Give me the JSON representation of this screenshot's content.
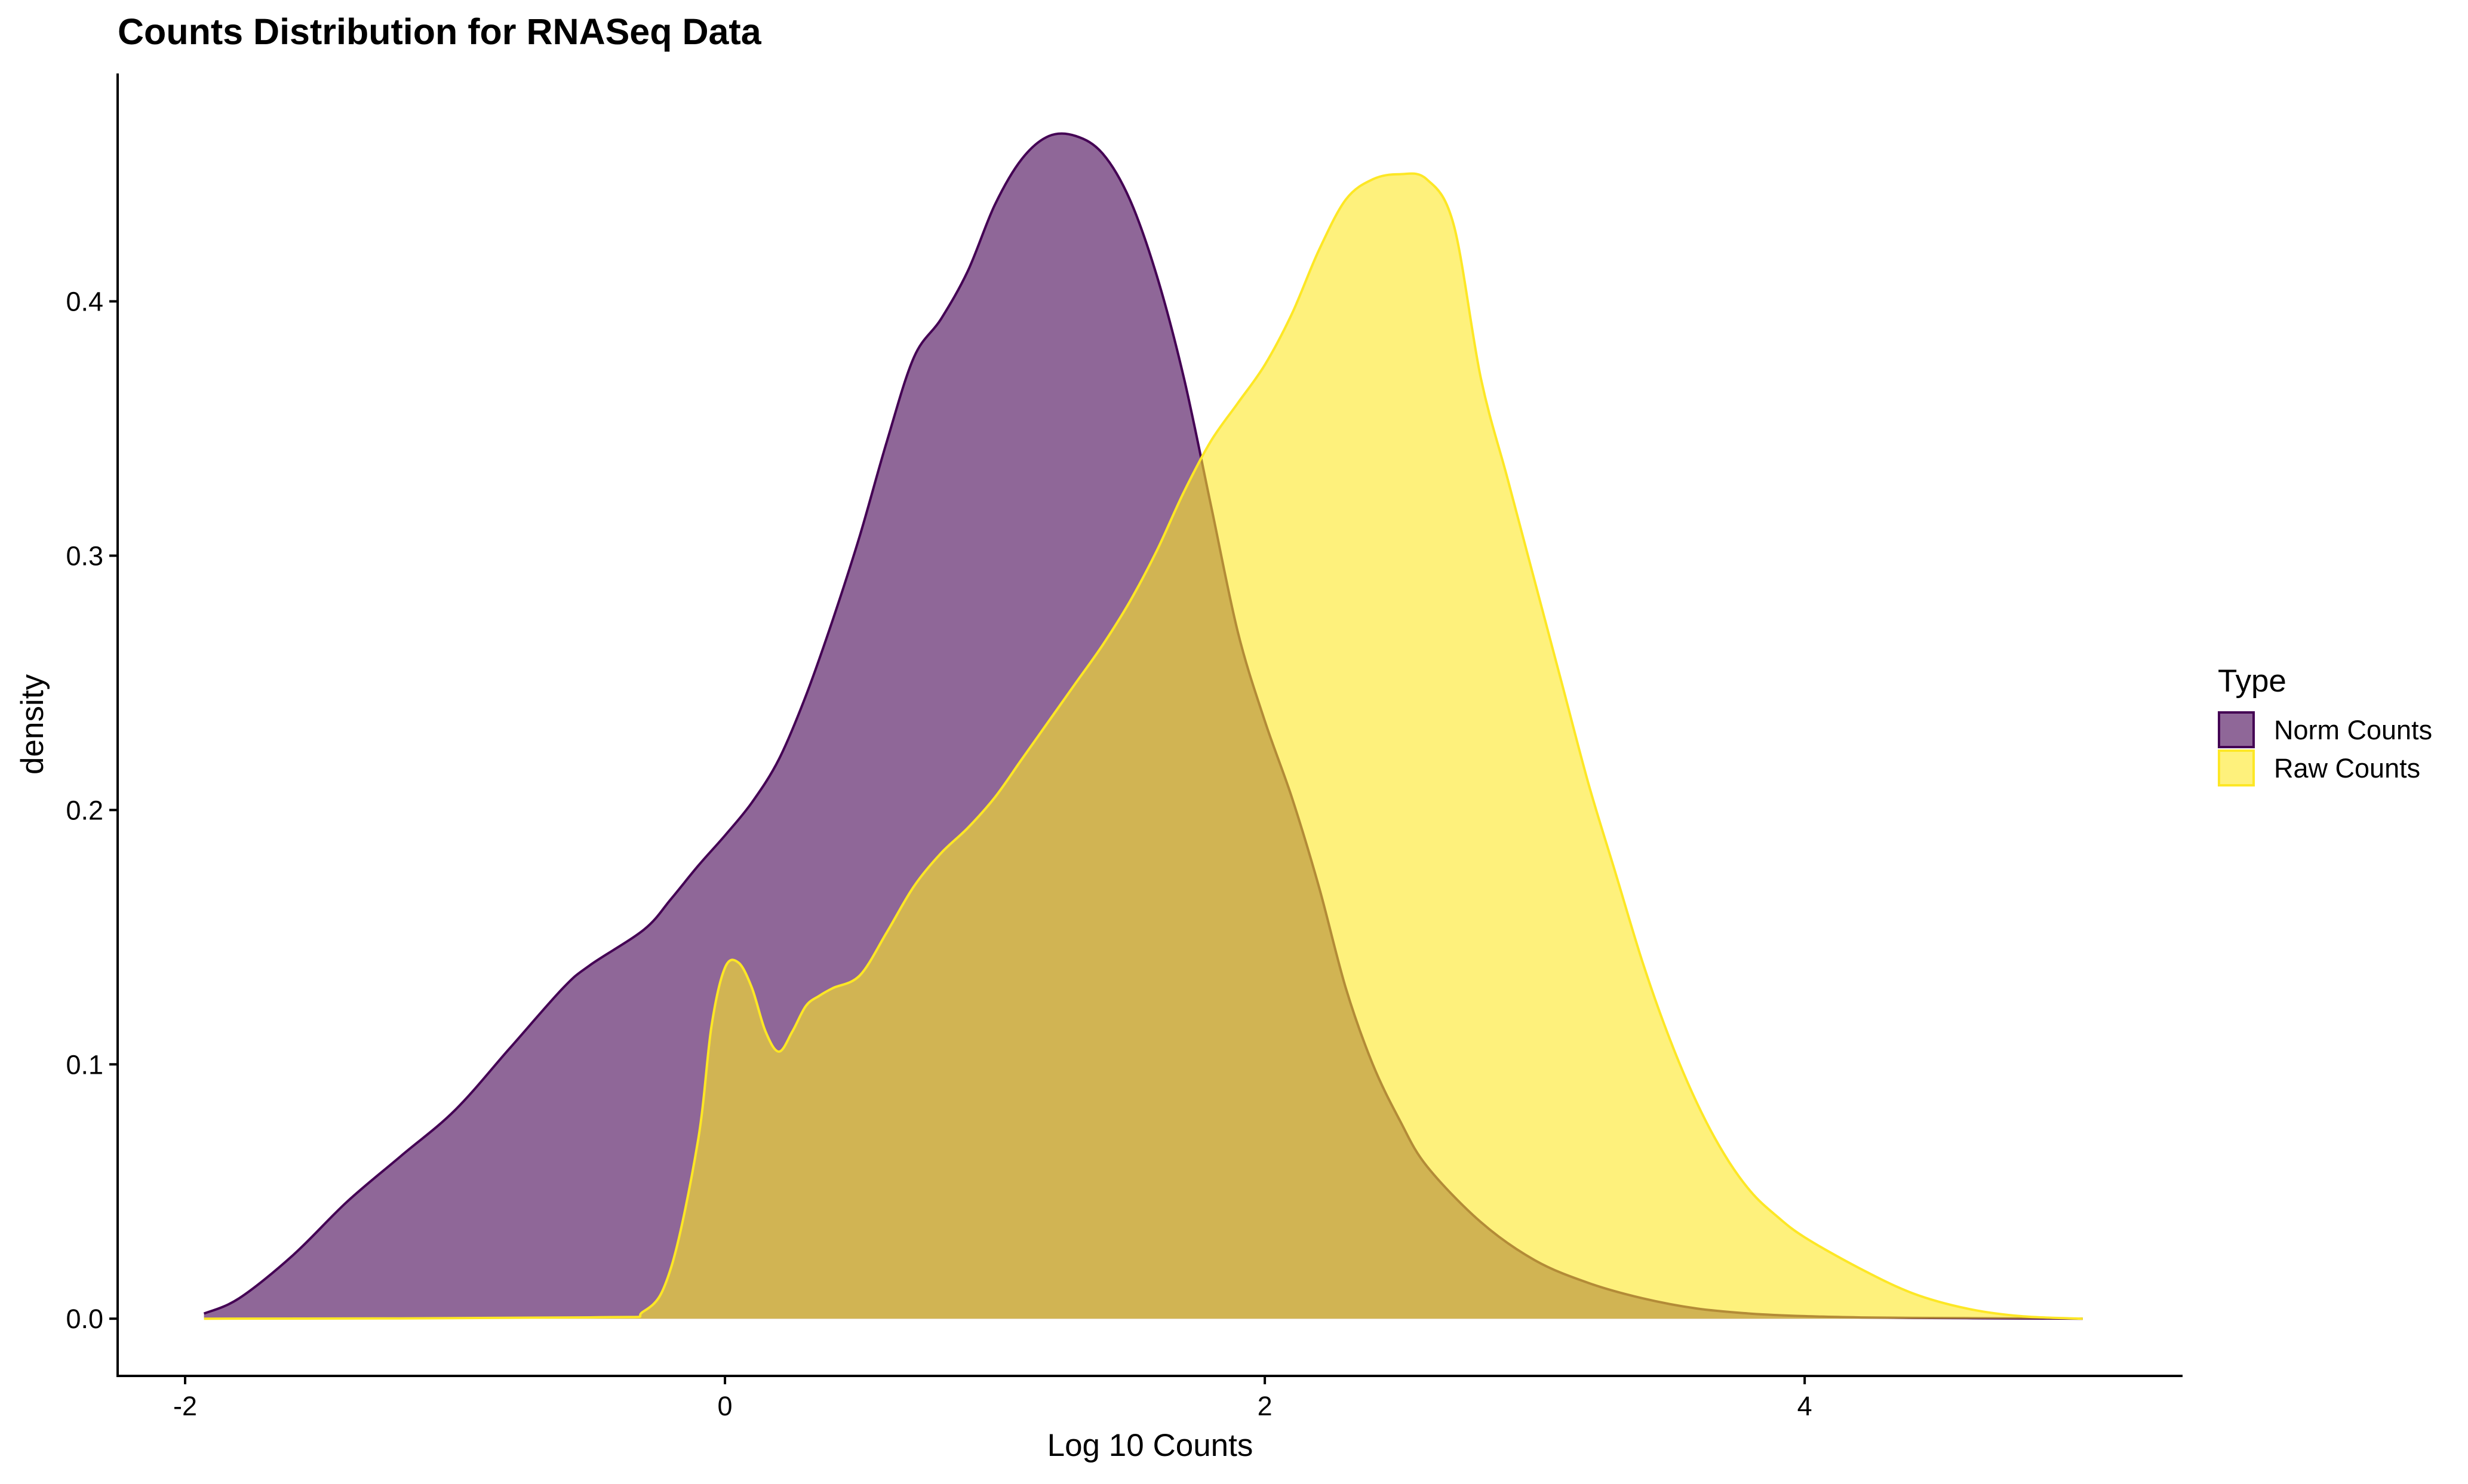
{
  "chart_data": {
    "type": "area",
    "subtype": "density",
    "title": "Counts Distribution for RNASeq Data",
    "xlabel": "Log 10 Counts",
    "ylabel": "density",
    "xlim": [
      -2.25,
      5.4
    ],
    "ylim": [
      -0.0225,
      0.4896
    ],
    "x_ticks": [
      -2,
      0,
      2,
      4
    ],
    "x_tick_labels": [
      "-2",
      "0",
      "2",
      "4"
    ],
    "y_ticks": [
      0.0,
      0.1,
      0.2,
      0.3,
      0.4
    ],
    "y_tick_labels": [
      "0.0",
      "0.1",
      "0.2",
      "0.3",
      "0.4"
    ],
    "grid": false,
    "legend": {
      "title": "Type",
      "position": "right",
      "entries": [
        "Norm Counts",
        "Raw Counts"
      ]
    },
    "series": [
      {
        "name": "Norm Counts",
        "fill": "#440154",
        "stroke": "#440154",
        "fill_opacity": 0.6,
        "x": [
          -1.93,
          -1.8,
          -1.6,
          -1.4,
          -1.2,
          -1.0,
          -0.8,
          -0.6,
          -0.5,
          -0.3,
          -0.2,
          -0.1,
          0.0,
          0.1,
          0.2,
          0.3,
          0.4,
          0.5,
          0.6,
          0.7,
          0.8,
          0.9,
          1.0,
          1.1,
          1.2,
          1.3,
          1.4,
          1.5,
          1.6,
          1.7,
          1.8,
          1.9,
          2.0,
          2.1,
          2.2,
          2.3,
          2.4,
          2.5,
          2.6,
          2.8,
          3.0,
          3.2,
          3.4,
          3.6,
          3.8,
          4.0,
          4.2,
          4.4,
          4.6,
          4.8,
          5.03
        ],
        "y": [
          0.002,
          0.008,
          0.025,
          0.046,
          0.064,
          0.082,
          0.106,
          0.13,
          0.139,
          0.153,
          0.165,
          0.178,
          0.19,
          0.203,
          0.22,
          0.245,
          0.275,
          0.308,
          0.345,
          0.378,
          0.393,
          0.412,
          0.438,
          0.456,
          0.465,
          0.465,
          0.458,
          0.44,
          0.41,
          0.37,
          0.32,
          0.27,
          0.235,
          0.205,
          0.17,
          0.13,
          0.1,
          0.078,
          0.06,
          0.038,
          0.023,
          0.014,
          0.008,
          0.004,
          0.002,
          0.001,
          0.0005,
          0.0003,
          0.0002,
          0.0001,
          0.0
        ]
      },
      {
        "name": "Raw Counts",
        "fill": "#FDE725",
        "stroke": "#FDE725",
        "fill_opacity": 0.6,
        "x": [
          -1.93,
          -0.5,
          -0.3,
          -0.2,
          -0.1,
          -0.05,
          0.0,
          0.05,
          0.1,
          0.15,
          0.2,
          0.25,
          0.3,
          0.35,
          0.4,
          0.5,
          0.6,
          0.7,
          0.8,
          0.9,
          1.0,
          1.1,
          1.2,
          1.3,
          1.4,
          1.5,
          1.6,
          1.7,
          1.8,
          1.9,
          2.0,
          2.1,
          2.2,
          2.3,
          2.4,
          2.5,
          2.6,
          2.7,
          2.8,
          2.9,
          3.0,
          3.1,
          3.2,
          3.3,
          3.4,
          3.5,
          3.6,
          3.7,
          3.8,
          3.9,
          4.0,
          4.2,
          4.4,
          4.6,
          4.8,
          5.03
        ],
        "y": [
          0.0,
          0.0005,
          0.003,
          0.02,
          0.07,
          0.115,
          0.138,
          0.14,
          0.13,
          0.113,
          0.105,
          0.113,
          0.123,
          0.127,
          0.13,
          0.135,
          0.152,
          0.17,
          0.183,
          0.193,
          0.205,
          0.22,
          0.235,
          0.25,
          0.265,
          0.282,
          0.302,
          0.325,
          0.345,
          0.36,
          0.375,
          0.395,
          0.42,
          0.44,
          0.448,
          0.45,
          0.448,
          0.43,
          0.37,
          0.33,
          0.29,
          0.25,
          0.21,
          0.175,
          0.14,
          0.11,
          0.085,
          0.065,
          0.05,
          0.04,
          0.032,
          0.02,
          0.01,
          0.004,
          0.001,
          0.0
        ]
      }
    ]
  }
}
